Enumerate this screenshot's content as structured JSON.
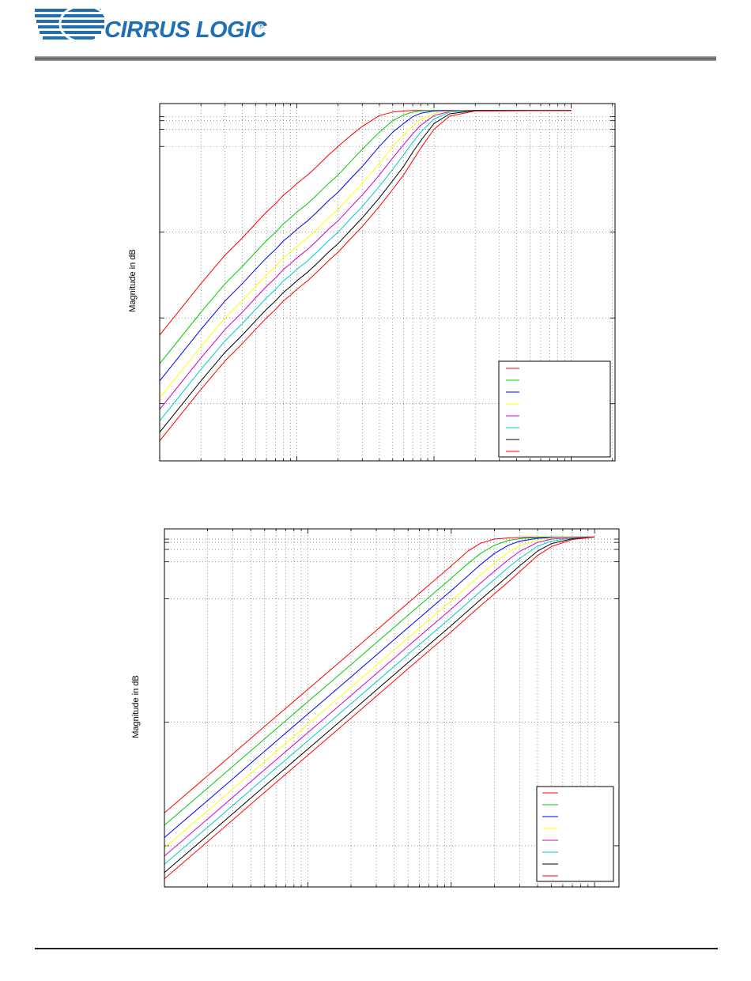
{
  "header": {
    "company": "CIRRUS LOGIC",
    "registered_mark": "®",
    "logo_icon": "cirrus-logic-stripes-icon",
    "brand_color": "#1f6fb2"
  },
  "chart_data": [
    {
      "type": "line",
      "title": "",
      "xlabel": "",
      "ylabel": "Magnitude in dB",
      "x_scale": "log",
      "grid": true,
      "grid_style": "dotted",
      "legend_position": "bottom-right",
      "legend_labels_visible": false,
      "x": [
        1,
        2,
        3,
        4,
        5,
        6,
        7,
        8,
        9,
        10,
        12,
        14,
        17,
        20,
        25,
        30,
        40,
        50,
        60,
        70,
        80,
        100,
        130,
        200,
        1000
      ],
      "series": [
        {
          "color": "#ff0000",
          "values": [
            2,
            11,
            16,
            19,
            21.5,
            23.5,
            25,
            26.5,
            27.5,
            28.5,
            30,
            31.5,
            33.5,
            35,
            37,
            38.5,
            40.4,
            41,
            41.2,
            41.3,
            41.3,
            41.3,
            41.3,
            41.3,
            41.3
          ]
        },
        {
          "color": "#00cc00",
          "values": [
            -3,
            6,
            11,
            14,
            16.5,
            18.5,
            20,
            21.5,
            22.5,
            23.5,
            25,
            26.5,
            28.5,
            30,
            32.5,
            34.5,
            37.5,
            39.5,
            40.5,
            41,
            41.2,
            41.3,
            41.3,
            41.3,
            41.3
          ]
        },
        {
          "color": "#0000ff",
          "values": [
            -6,
            3,
            8,
            11,
            13.5,
            15.5,
            17,
            18.5,
            19.5,
            20.5,
            22,
            23.5,
            25.5,
            27,
            29.5,
            31.5,
            35,
            37.5,
            39,
            40.2,
            40.8,
            41.2,
            41.3,
            41.3,
            41.3
          ]
        },
        {
          "color": "#ffff00",
          "values": [
            -9,
            0,
            5,
            8,
            10.5,
            12.5,
            14,
            15.5,
            16.5,
            17.5,
            19,
            20.5,
            22.5,
            24,
            26.5,
            28.5,
            32,
            35,
            37,
            38.5,
            39.7,
            40.8,
            41.2,
            41.3,
            41.3
          ]
        },
        {
          "color": "#cc00cc",
          "values": [
            -11,
            -2,
            3,
            6,
            8.5,
            10.5,
            12,
            13.5,
            14.5,
            15.5,
            17,
            18.5,
            20.5,
            22,
            24.5,
            26.5,
            30,
            33,
            35.3,
            37.2,
            38.7,
            40.4,
            41.1,
            41.3,
            41.3
          ]
        },
        {
          "color": "#00cccc",
          "values": [
            -13,
            -4,
            1,
            4,
            6.5,
            8.5,
            10,
            11.5,
            12.5,
            13.5,
            15,
            16.5,
            18.5,
            20,
            22.5,
            24.5,
            28,
            31,
            33.5,
            35.7,
            37.5,
            39.8,
            41,
            41.3,
            41.3
          ]
        },
        {
          "color": "#000000",
          "values": [
            -15,
            -6,
            -1,
            2,
            4.5,
            6.5,
            8,
            9.5,
            10.5,
            11.5,
            13,
            14.5,
            16.5,
            18,
            20.5,
            22.5,
            26,
            29,
            31.5,
            34,
            36,
            39,
            40.7,
            41.3,
            41.3
          ]
        },
        {
          "color": "#ff0000",
          "values": [
            -16.5,
            -7.5,
            -2.5,
            0.5,
            3,
            5,
            6.5,
            8,
            9,
            10,
            11.5,
            13,
            15,
            16.5,
            19,
            21,
            24.5,
            27.5,
            30,
            32.5,
            34.7,
            38,
            40.3,
            41.2,
            41.3
          ]
        }
      ]
    },
    {
      "type": "line",
      "title": "",
      "xlabel": "",
      "ylabel": "Magnitude in dB",
      "x_scale": "log",
      "grid": true,
      "grid_style": "dotted",
      "legend_position": "bottom-right",
      "legend_labels_visible": false,
      "x": [
        1,
        2,
        5,
        10,
        20,
        50,
        100,
        130,
        160,
        200,
        250,
        300,
        400,
        500,
        700,
        1000
      ],
      "series": [
        {
          "color": "#ff0000",
          "values": [
            -2,
            7,
            19,
            28,
            37,
            49,
            58,
            61.5,
            63.5,
            64.5,
            64.8,
            64.9,
            65,
            65,
            65,
            65
          ]
        },
        {
          "color": "#00cc00",
          "values": [
            -5,
            4,
            16,
            25,
            34,
            46,
            55,
            58.5,
            61,
            63,
            64.2,
            64.6,
            64.9,
            65,
            65,
            65
          ]
        },
        {
          "color": "#0000ff",
          "values": [
            -8,
            1,
            13,
            22,
            31,
            43,
            52,
            55.5,
            58.3,
            61,
            63,
            64,
            64.7,
            64.9,
            65,
            65
          ]
        },
        {
          "color": "#ffff00",
          "values": [
            -10.5,
            -1.5,
            10.5,
            19.5,
            28.5,
            40.5,
            49.5,
            53,
            55.8,
            58.7,
            61.3,
            62.9,
            64.3,
            64.8,
            65,
            65
          ]
        },
        {
          "color": "#cc00cc",
          "values": [
            -12.5,
            -3.5,
            8.5,
            17.5,
            26.5,
            38.5,
            47.5,
            51,
            53.8,
            56.7,
            59.5,
            61.5,
            63.7,
            64.5,
            64.9,
            65
          ]
        },
        {
          "color": "#00cccc",
          "values": [
            -14.5,
            -5.5,
            6.5,
            15.5,
            24.5,
            36.5,
            45.5,
            49,
            51.8,
            54.7,
            57.6,
            59.8,
            62.8,
            64,
            64.8,
            65
          ]
        },
        {
          "color": "#000000",
          "values": [
            -16.5,
            -7.5,
            4.5,
            13.5,
            22.5,
            34.5,
            43.5,
            47,
            49.8,
            52.7,
            55.6,
            58,
            61.6,
            63.4,
            64.6,
            65
          ]
        },
        {
          "color": "#ff0000",
          "values": [
            -18,
            -9,
            3,
            12,
            21,
            33,
            42,
            45.5,
            48.3,
            51.2,
            54.1,
            56.6,
            60.5,
            62.7,
            64.4,
            65
          ]
        }
      ]
    }
  ]
}
